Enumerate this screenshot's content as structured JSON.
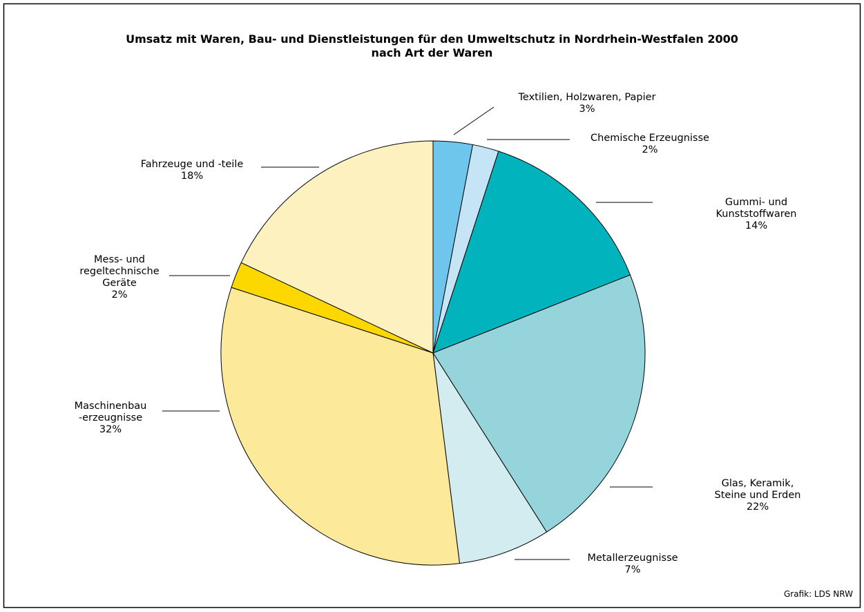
{
  "chart_data": {
    "type": "pie",
    "title": "Umsatz mit Waren, Bau- und Dienstleistungen für den Umweltschutz in Nordrhein-Westfalen 2000",
    "subtitle": "nach Art der Waren",
    "categories": [
      "Textilien, Holzwaren, Papier",
      "Chemische Erzeugnisse",
      "Gummi- und Kunststoffwaren",
      "Glas, Keramik, Steine und Erden",
      "Metallerzeugnisse",
      "Maschinenbau\n-erzeugnisse",
      "Mess- und\nregeltechnische\nGeräte",
      "Fahrzeuge und -teile"
    ],
    "values": [
      3,
      2,
      14,
      22,
      7,
      32,
      2,
      18
    ],
    "value_labels": [
      "3%",
      "2%",
      "14%",
      "22%",
      "7%",
      "32%",
      "2%",
      "18%"
    ],
    "colors": [
      "#6ec6ec",
      "#c5e4f5",
      "#00b3bd",
      "#96d4dc",
      "#d3ecf0",
      "#fde99a",
      "#fcd800",
      "#fdf1bf"
    ],
    "source": "Grafik: LDS NRW"
  }
}
